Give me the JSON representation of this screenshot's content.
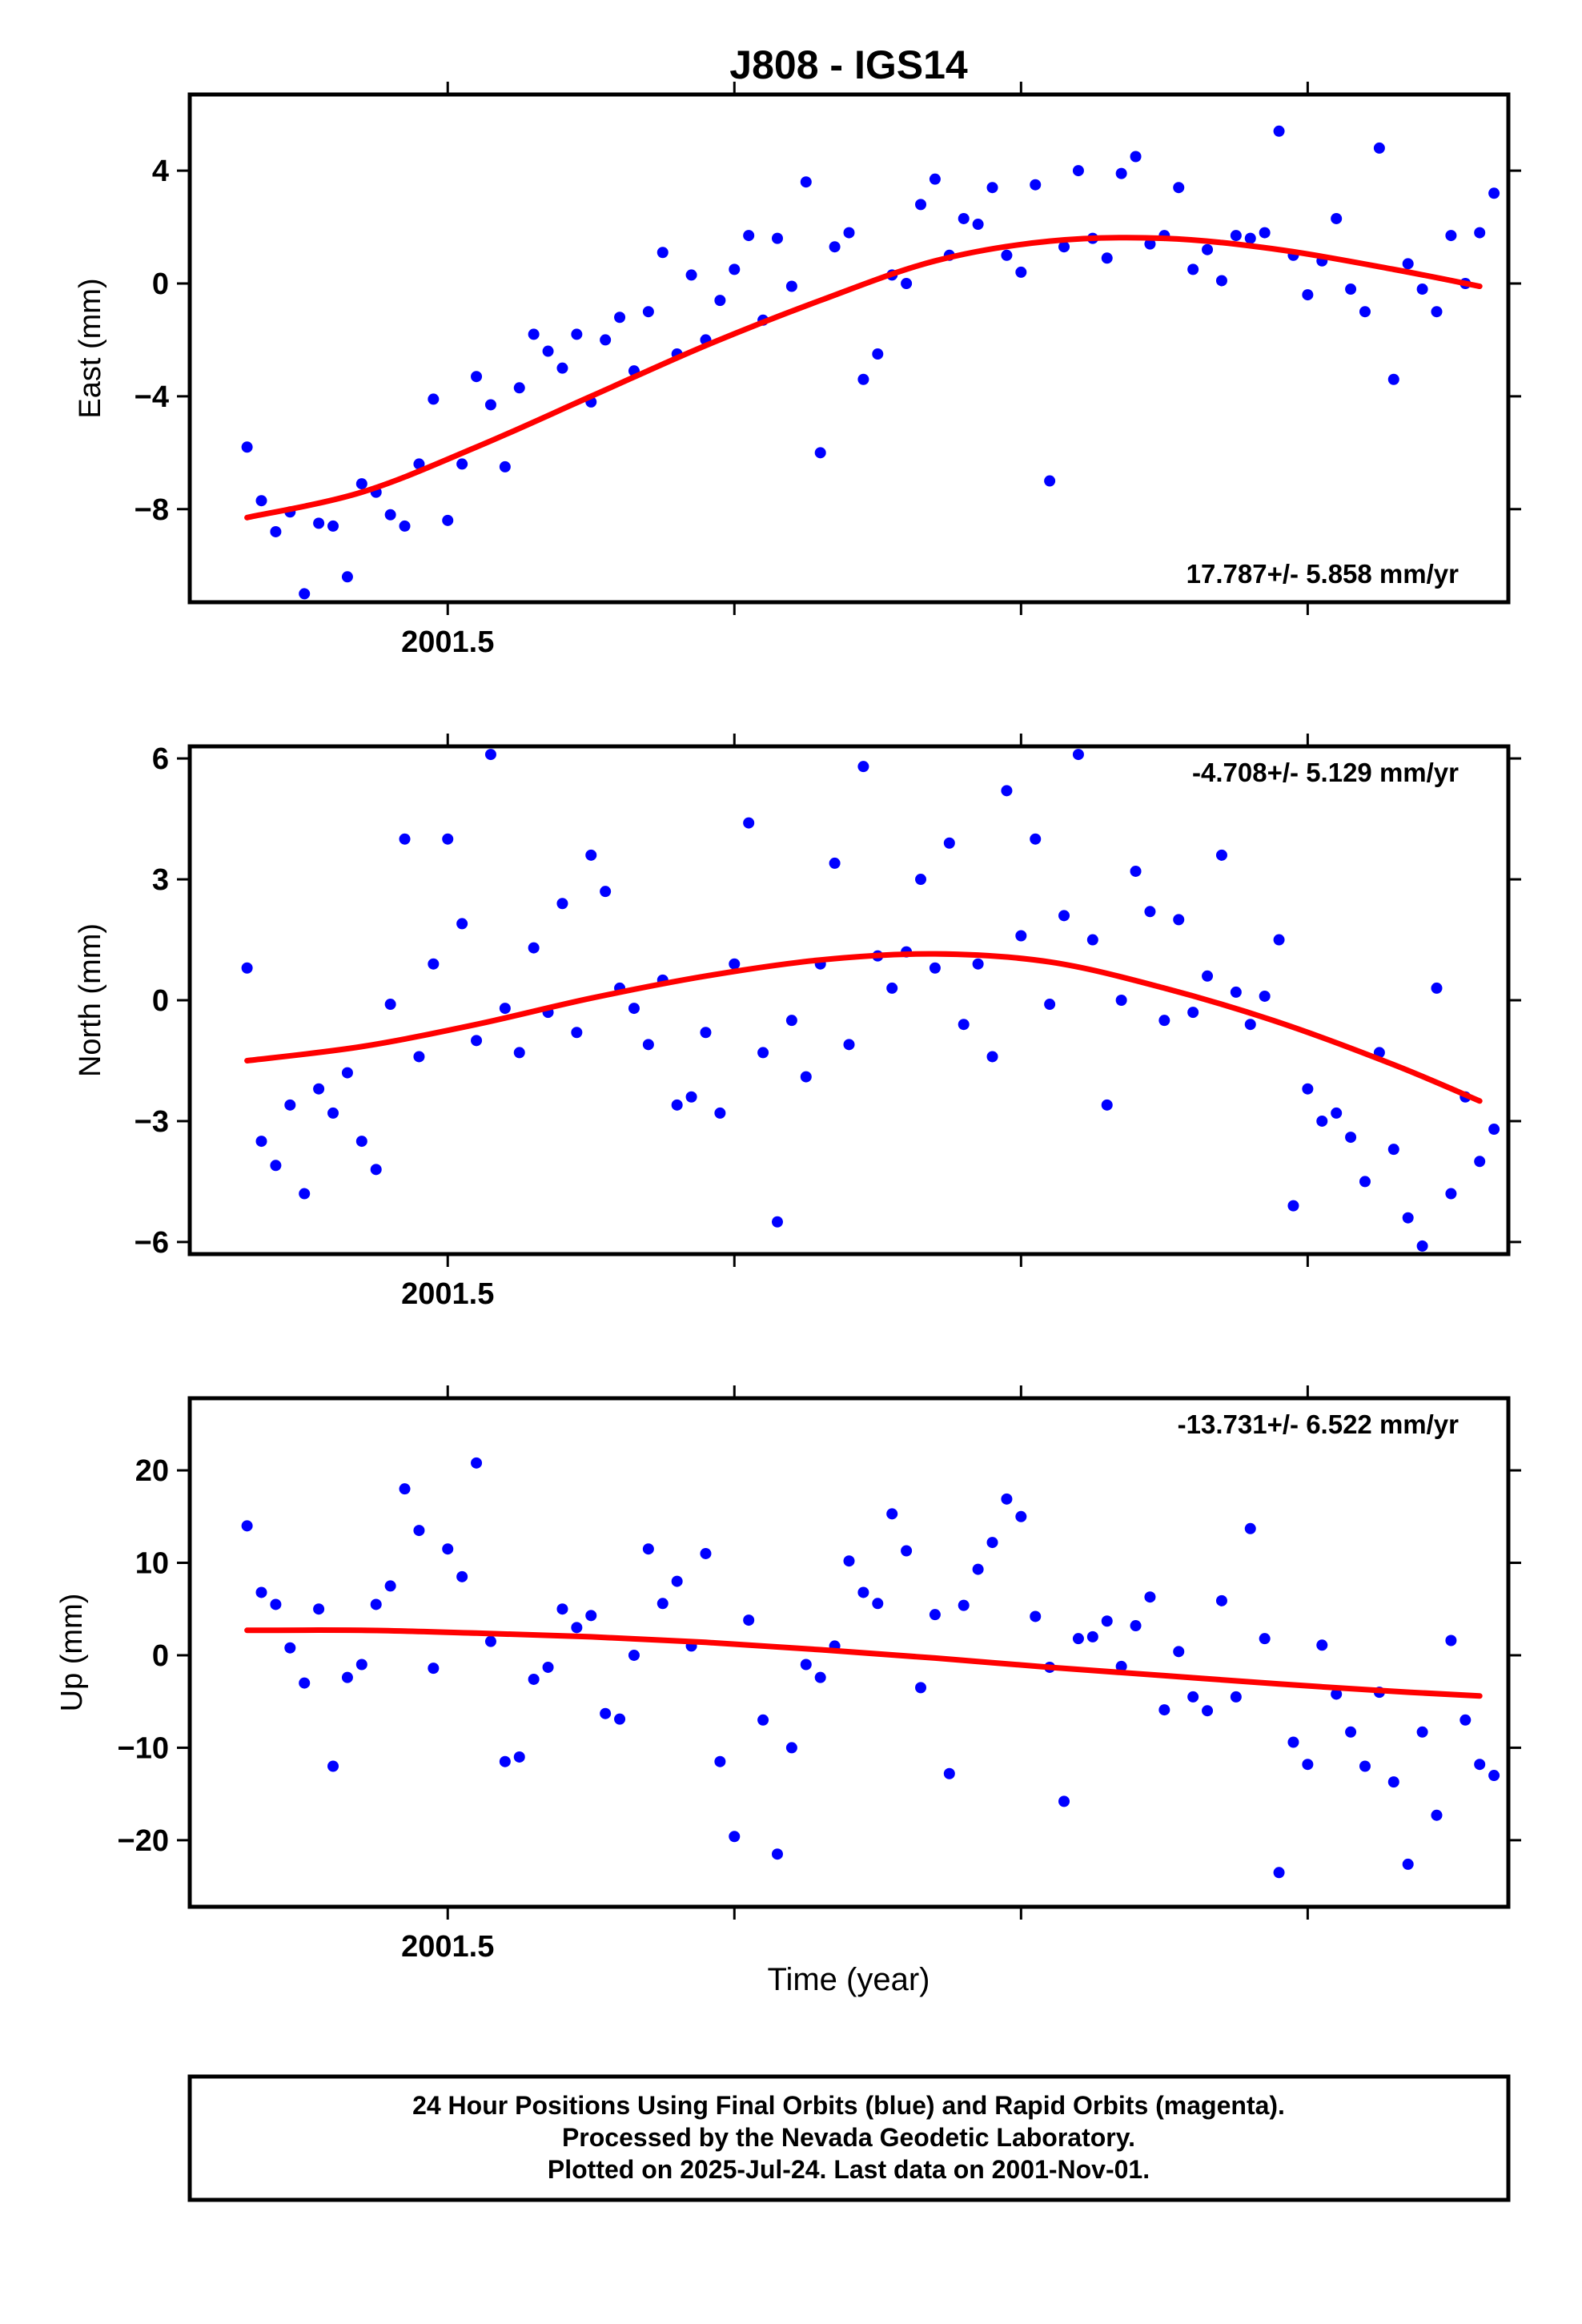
{
  "chart_data": {
    "title": "J808 - IGS14",
    "type": "scatter",
    "xlabel": "Time (year)",
    "xlim": [
      2001.41,
      2001.87
    ],
    "x_tick_labels": [
      {
        "value": 2001.5,
        "label": "2001.5"
      }
    ],
    "x_minor_ticks": [
      2001.5,
      2001.6,
      2001.7,
      2001.8
    ],
    "colors": {
      "final_orbits": "#0000ff",
      "fit_line": "#ff0000",
      "frame": "#000000"
    },
    "panels": [
      {
        "ylabel": "East (mm)",
        "ylim": [
          -11.3,
          6.7
        ],
        "yticks": [
          {
            "value": 4,
            "label": "4"
          },
          {
            "value": 0,
            "label": "0"
          },
          {
            "value": -4,
            "label": "−4"
          },
          {
            "value": -8,
            "label": "−8"
          }
        ],
        "rate_label": "17.787+/- 5.858 mm/yr",
        "rate_position": "bottom-right",
        "fit_line": {
          "x": [
            2001.43,
            2001.47,
            2001.51,
            2001.55,
            2001.59,
            2001.63,
            2001.67,
            2001.71,
            2001.75,
            2001.79,
            2001.83,
            2001.86
          ],
          "y": [
            -8.3,
            -7.4,
            -5.8,
            -4.0,
            -2.2,
            -0.6,
            0.8,
            1.5,
            1.6,
            1.2,
            0.5,
            -0.1
          ]
        },
        "points": {
          "x": [
            2001.43,
            2001.435,
            2001.44,
            2001.445,
            2001.45,
            2001.455,
            2001.46,
            2001.465,
            2001.47,
            2001.475,
            2001.48,
            2001.485,
            2001.49,
            2001.495,
            2001.5,
            2001.505,
            2001.51,
            2001.515,
            2001.52,
            2001.525,
            2001.53,
            2001.535,
            2001.54,
            2001.545,
            2001.55,
            2001.555,
            2001.56,
            2001.565,
            2001.57,
            2001.575,
            2001.58,
            2001.585,
            2001.59,
            2001.595,
            2001.6,
            2001.605,
            2001.61,
            2001.615,
            2001.62,
            2001.625,
            2001.63,
            2001.635,
            2001.64,
            2001.645,
            2001.65,
            2001.655,
            2001.66,
            2001.665,
            2001.67,
            2001.675,
            2001.68,
            2001.685,
            2001.69,
            2001.695,
            2001.7,
            2001.705,
            2001.71,
            2001.715,
            2001.72,
            2001.725,
            2001.73,
            2001.735,
            2001.74,
            2001.745,
            2001.75,
            2001.755,
            2001.76,
            2001.765,
            2001.77,
            2001.775,
            2001.78,
            2001.785,
            2001.79,
            2001.795,
            2001.8,
            2001.805,
            2001.81,
            2001.815,
            2001.82,
            2001.825,
            2001.83,
            2001.835,
            2001.84,
            2001.845,
            2001.85,
            2001.855,
            2001.86,
            2001.865
          ],
          "y": [
            -5.8,
            -7.7,
            -8.8,
            -8.1,
            -11.0,
            -8.5,
            -8.6,
            -10.4,
            -7.1,
            -7.4,
            -8.2,
            -8.6,
            -6.4,
            -4.1,
            -8.4,
            -6.4,
            -3.3,
            -4.3,
            -6.5,
            -3.7,
            -1.8,
            -2.4,
            -3.0,
            -1.8,
            -4.2,
            -2.0,
            -1.2,
            -3.1,
            -1.0,
            1.1,
            -2.5,
            0.3,
            -2.0,
            -0.6,
            0.5,
            1.7,
            -1.3,
            1.6,
            -0.1,
            3.6,
            -6.0,
            1.3,
            1.8,
            -3.4,
            -2.5,
            0.3,
            0.0,
            2.8,
            3.7,
            1.0,
            2.3,
            2.1,
            3.4,
            1.0,
            0.4,
            3.5,
            -7.0,
            1.3,
            4.0,
            1.6,
            0.9,
            3.9,
            4.5,
            1.4,
            1.7,
            3.4,
            0.5,
            1.2,
            0.1,
            1.7,
            1.6,
            1.8,
            5.4,
            1.0,
            -0.4,
            0.8,
            2.3,
            -0.2,
            -1.0,
            4.8,
            -3.4,
            0.7,
            -0.2,
            -1.0,
            1.7,
            0.0,
            1.8,
            3.2
          ]
        }
      },
      {
        "ylabel": "North (mm)",
        "ylim": [
          -6.3,
          6.3
        ],
        "yticks": [
          {
            "value": 6,
            "label": "6"
          },
          {
            "value": 3,
            "label": "3"
          },
          {
            "value": 0,
            "label": "0"
          },
          {
            "value": -3,
            "label": "−3"
          },
          {
            "value": -6,
            "label": "−6"
          }
        ],
        "rate_label": "-4.708+/- 5.129 mm/yr",
        "rate_position": "top-right",
        "fit_line": {
          "x": [
            2001.43,
            2001.47,
            2001.51,
            2001.55,
            2001.59,
            2001.63,
            2001.67,
            2001.71,
            2001.75,
            2001.79,
            2001.83,
            2001.86
          ],
          "y": [
            -1.5,
            -1.15,
            -0.6,
            0.05,
            0.6,
            1.0,
            1.15,
            0.95,
            0.3,
            -0.55,
            -1.6,
            -2.5
          ]
        },
        "points": {
          "x": [
            2001.43,
            2001.435,
            2001.44,
            2001.445,
            2001.45,
            2001.455,
            2001.46,
            2001.465,
            2001.47,
            2001.475,
            2001.48,
            2001.485,
            2001.49,
            2001.495,
            2001.5,
            2001.505,
            2001.51,
            2001.515,
            2001.52,
            2001.525,
            2001.53,
            2001.535,
            2001.54,
            2001.545,
            2001.55,
            2001.555,
            2001.56,
            2001.565,
            2001.57,
            2001.575,
            2001.58,
            2001.585,
            2001.59,
            2001.595,
            2001.6,
            2001.605,
            2001.61,
            2001.615,
            2001.62,
            2001.625,
            2001.63,
            2001.635,
            2001.64,
            2001.645,
            2001.65,
            2001.655,
            2001.66,
            2001.665,
            2001.67,
            2001.675,
            2001.68,
            2001.685,
            2001.69,
            2001.695,
            2001.7,
            2001.705,
            2001.71,
            2001.715,
            2001.72,
            2001.725,
            2001.73,
            2001.735,
            2001.74,
            2001.745,
            2001.75,
            2001.755,
            2001.76,
            2001.765,
            2001.77,
            2001.775,
            2001.78,
            2001.785,
            2001.79,
            2001.795,
            2001.8,
            2001.805,
            2001.81,
            2001.815,
            2001.82,
            2001.825,
            2001.83,
            2001.835,
            2001.84,
            2001.845,
            2001.85,
            2001.855,
            2001.86,
            2001.865
          ],
          "y": [
            0.8,
            -3.5,
            -4.1,
            -2.6,
            -4.8,
            -2.2,
            -2.8,
            -1.8,
            -3.5,
            -4.2,
            -0.1,
            4.0,
            -1.4,
            0.9,
            4.0,
            1.9,
            -1.0,
            6.1,
            -0.2,
            -1.3,
            1.3,
            -0.3,
            2.4,
            -0.8,
            3.6,
            2.7,
            0.3,
            -0.2,
            -1.1,
            0.5,
            -2.6,
            -2.4,
            -0.8,
            -2.8,
            0.9,
            4.4,
            -1.3,
            -5.5,
            -0.5,
            -1.9,
            0.9,
            3.4,
            -1.1,
            5.8,
            1.1,
            0.3,
            1.2,
            3.0,
            0.8,
            3.9,
            -0.6,
            0.9,
            -1.4,
            5.2,
            1.6,
            4.0,
            -0.1,
            2.1,
            6.1,
            1.5,
            -2.6,
            0.0,
            3.2,
            2.2,
            -0.5,
            2.0,
            -0.3,
            0.6,
            3.6,
            0.2,
            -0.6,
            0.1,
            1.5,
            -5.1,
            -2.2,
            -3.0,
            -2.8,
            -3.4,
            -4.5,
            -1.3,
            -3.7,
            -5.4,
            -6.1,
            0.3,
            -4.8,
            -2.4,
            -4.0,
            -3.2
          ]
        }
      },
      {
        "ylabel": "Up (mm)",
        "ylim": [
          -27.2,
          27.8
        ],
        "yticks": [
          {
            "value": 20,
            "label": "20"
          },
          {
            "value": 10,
            "label": "10"
          },
          {
            "value": 0,
            "label": "0"
          },
          {
            "value": -10,
            "label": "−10"
          },
          {
            "value": -20,
            "label": "−20"
          }
        ],
        "rate_label": "-13.731+/- 6.522 mm/yr",
        "rate_position": "top-right",
        "fit_line": {
          "x": [
            2001.43,
            2001.47,
            2001.51,
            2001.55,
            2001.59,
            2001.63,
            2001.67,
            2001.71,
            2001.75,
            2001.79,
            2001.83,
            2001.86
          ],
          "y": [
            2.7,
            2.7,
            2.4,
            2.0,
            1.4,
            0.6,
            -0.3,
            -1.3,
            -2.2,
            -3.1,
            -3.9,
            -4.4
          ]
        },
        "points": {
          "x": [
            2001.43,
            2001.435,
            2001.44,
            2001.445,
            2001.45,
            2001.455,
            2001.46,
            2001.465,
            2001.47,
            2001.475,
            2001.48,
            2001.485,
            2001.49,
            2001.495,
            2001.5,
            2001.505,
            2001.51,
            2001.515,
            2001.52,
            2001.525,
            2001.53,
            2001.535,
            2001.54,
            2001.545,
            2001.55,
            2001.555,
            2001.56,
            2001.565,
            2001.57,
            2001.575,
            2001.58,
            2001.585,
            2001.59,
            2001.595,
            2001.6,
            2001.605,
            2001.61,
            2001.615,
            2001.62,
            2001.625,
            2001.63,
            2001.635,
            2001.64,
            2001.645,
            2001.65,
            2001.655,
            2001.66,
            2001.665,
            2001.67,
            2001.675,
            2001.68,
            2001.685,
            2001.69,
            2001.695,
            2001.7,
            2001.705,
            2001.71,
            2001.715,
            2001.72,
            2001.725,
            2001.73,
            2001.735,
            2001.74,
            2001.745,
            2001.75,
            2001.755,
            2001.76,
            2001.765,
            2001.77,
            2001.775,
            2001.78,
            2001.785,
            2001.79,
            2001.795,
            2001.8,
            2001.805,
            2001.81,
            2001.815,
            2001.82,
            2001.825,
            2001.83,
            2001.835,
            2001.84,
            2001.845,
            2001.85,
            2001.855,
            2001.86,
            2001.865
          ],
          "y": [
            14.0,
            6.8,
            5.5,
            0.8,
            -3.0,
            5.0,
            -12.0,
            -2.4,
            -1.0,
            5.5,
            7.5,
            18.0,
            13.5,
            -1.4,
            11.5,
            8.5,
            20.8,
            1.5,
            -11.5,
            -11.0,
            -2.6,
            -1.3,
            5.0,
            3.0,
            4.3,
            -6.3,
            -6.9,
            0.0,
            11.5,
            5.6,
            8.0,
            1.0,
            11.0,
            -11.5,
            -19.6,
            3.8,
            -7.0,
            -21.5,
            -10.0,
            -1.0,
            -2.4,
            1.0,
            10.2,
            6.8,
            5.6,
            15.3,
            11.3,
            -3.5,
            4.4,
            -12.8,
            5.4,
            9.3,
            12.2,
            16.9,
            15.0,
            4.2,
            -1.3,
            -15.8,
            1.8,
            2.0,
            3.7,
            -1.2,
            3.2,
            6.3,
            -5.9,
            0.4,
            -4.5,
            -6.0,
            5.9,
            -4.5,
            13.7,
            1.8,
            -23.5,
            -9.4,
            -11.8,
            1.1,
            -4.2,
            -8.3,
            -12.0,
            -4.0,
            -13.7,
            -22.6,
            -8.3,
            -17.3,
            1.6,
            -7.0,
            -11.8,
            -13.0
          ]
        }
      }
    ]
  },
  "caption": {
    "line1": "24 Hour Positions Using Final Orbits (blue) and Rapid Orbits (magenta).",
    "line2": "Processed by the Nevada Geodetic Laboratory.",
    "line3": "Plotted on 2025-Jul-24. Last data on 2001-Nov-01."
  }
}
